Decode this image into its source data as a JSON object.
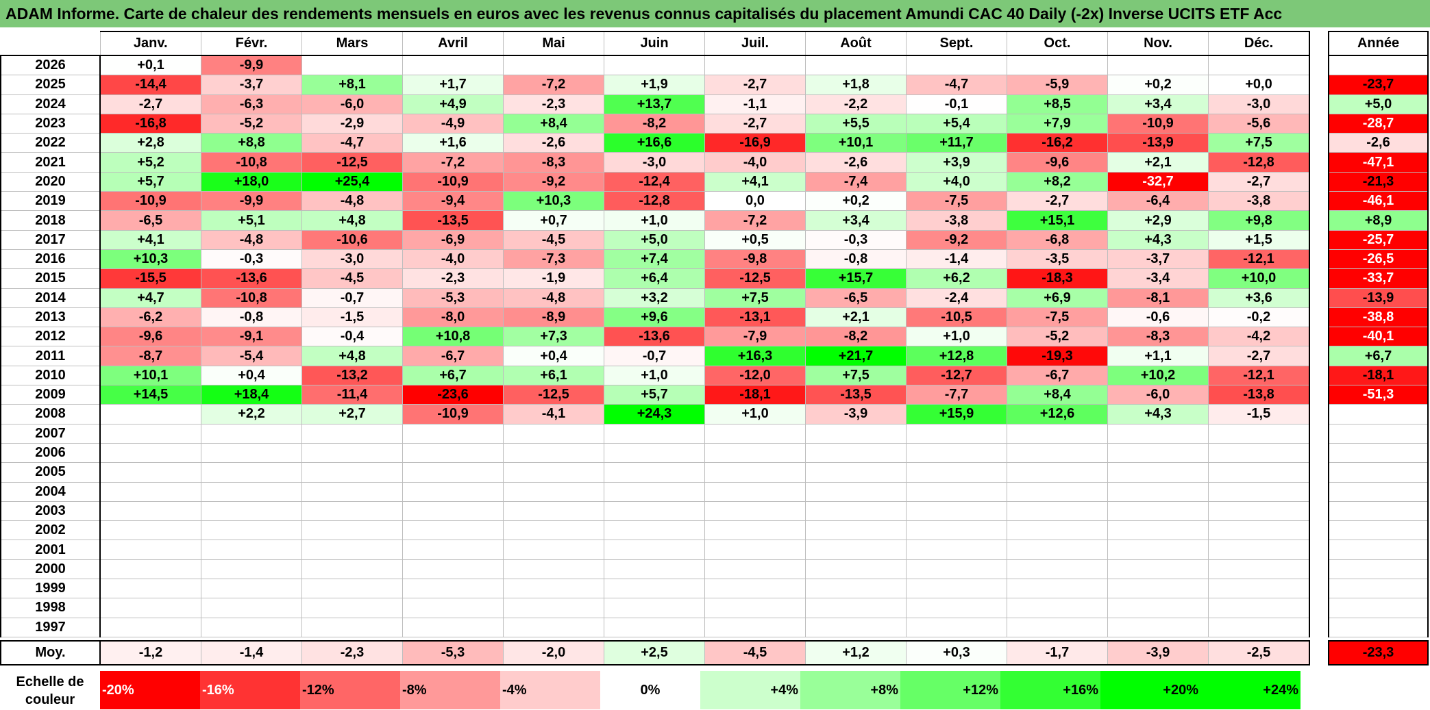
{
  "title": "ADAM Informe. Carte de chaleur des rendements mensuels en euros avec les revenus connus capitalisés du placement Amundi CAC 40 Daily (-2x) Inverse UCITS ETF Acc",
  "colors": {
    "title_bg": "#7dc878",
    "neg_strong": "#ff0000",
    "pos_strong": "#00ff00",
    "neutral": "#ffffff"
  },
  "chart_data": {
    "type": "heatmap",
    "title": "ADAM Informe. Carte de chaleur des rendements mensuels en euros avec les revenus connus capitalisés du placement Amundi CAC 40 Daily (-2x) Inverse UCITS ETF Acc",
    "columns": [
      "Janv.",
      "Févr.",
      "Mars",
      "Avril",
      "Mai",
      "Juin",
      "Juil.",
      "Août",
      "Sept.",
      "Oct.",
      "Nov.",
      "Déc."
    ],
    "year_column_header": "Année",
    "rows": [
      {
        "year": "2026",
        "months": [
          "+0,1",
          "-9,9",
          "",
          "",
          "",
          "",
          "",
          "",
          "",
          "",
          "",
          ""
        ],
        "annual": ""
      },
      {
        "year": "2025",
        "months": [
          "-14,4",
          "-3,7",
          "+8,1",
          "+1,7",
          "-7,2",
          "+1,9",
          "-2,7",
          "+1,8",
          "-4,7",
          "-5,9",
          "+0,2",
          "+0,0"
        ],
        "annual": "-23,7"
      },
      {
        "year": "2024",
        "months": [
          "-2,7",
          "-6,3",
          "-6,0",
          "+4,9",
          "-2,3",
          "+13,7",
          "-1,1",
          "-2,2",
          "-0,1",
          "+8,5",
          "+3,4",
          "-3,0"
        ],
        "annual": "+5,0"
      },
      {
        "year": "2023",
        "months": [
          "-16,8",
          "-5,2",
          "-2,9",
          "-4,9",
          "+8,4",
          "-8,2",
          "-2,7",
          "+5,5",
          "+5,4",
          "+7,9",
          "-10,9",
          "-5,6"
        ],
        "annual": "-28,7"
      },
      {
        "year": "2022",
        "months": [
          "+2,8",
          "+8,8",
          "-4,7",
          "+1,6",
          "-2,6",
          "+16,6",
          "-16,9",
          "+10,1",
          "+11,7",
          "-16,2",
          "-13,9",
          "+7,5"
        ],
        "annual": "-2,6"
      },
      {
        "year": "2021",
        "months": [
          "+5,2",
          "-10,8",
          "-12,5",
          "-7,2",
          "-8,3",
          "-3,0",
          "-4,0",
          "-2,6",
          "+3,9",
          "-9,6",
          "+2,1",
          "-12,8"
        ],
        "annual": "-47,1"
      },
      {
        "year": "2020",
        "months": [
          "+5,7",
          "+18,0",
          "+25,4",
          "-10,9",
          "-9,2",
          "-12,4",
          "+4,1",
          "-7,4",
          "+4,0",
          "+8,2",
          "-32,7",
          "-2,7"
        ],
        "annual": "-21,3"
      },
      {
        "year": "2019",
        "months": [
          "-10,9",
          "-9,9",
          "-4,8",
          "-9,4",
          "+10,3",
          "-12,8",
          "0,0",
          "+0,2",
          "-7,5",
          "-2,7",
          "-6,4",
          "-3,8"
        ],
        "annual": "-46,1"
      },
      {
        "year": "2018",
        "months": [
          "-6,5",
          "+5,1",
          "+4,8",
          "-13,5",
          "+0,7",
          "+1,0",
          "-7,2",
          "+3,4",
          "-3,8",
          "+15,1",
          "+2,9",
          "+9,8"
        ],
        "annual": "+8,9"
      },
      {
        "year": "2017",
        "months": [
          "+4,1",
          "-4,8",
          "-10,6",
          "-6,9",
          "-4,5",
          "+5,0",
          "+0,5",
          "-0,3",
          "-9,2",
          "-6,8",
          "+4,3",
          "+1,5"
        ],
        "annual": "-25,7"
      },
      {
        "year": "2016",
        "months": [
          "+10,3",
          "-0,3",
          "-3,0",
          "-4,0",
          "-7,3",
          "+7,4",
          "-9,8",
          "-0,8",
          "-1,4",
          "-3,5",
          "-3,7",
          "-12,1"
        ],
        "annual": "-26,5"
      },
      {
        "year": "2015",
        "months": [
          "-15,5",
          "-13,6",
          "-4,5",
          "-2,3",
          "-1,9",
          "+6,4",
          "-12,5",
          "+15,7",
          "+6,2",
          "-18,3",
          "-3,4",
          "+10,0"
        ],
        "annual": "-33,7"
      },
      {
        "year": "2014",
        "months": [
          "+4,7",
          "-10,8",
          "-0,7",
          "-5,3",
          "-4,8",
          "+3,2",
          "+7,5",
          "-6,5",
          "-2,4",
          "+6,9",
          "-8,1",
          "+3,6"
        ],
        "annual": "-13,9"
      },
      {
        "year": "2013",
        "months": [
          "-6,2",
          "-0,8",
          "-1,5",
          "-8,0",
          "-8,9",
          "+9,6",
          "-13,1",
          "+2,1",
          "-10,5",
          "-7,5",
          "-0,6",
          "-0,2"
        ],
        "annual": "-38,8"
      },
      {
        "year": "2012",
        "months": [
          "-9,6",
          "-9,1",
          "-0,4",
          "+10,8",
          "+7,3",
          "-13,6",
          "-7,9",
          "-8,2",
          "+1,0",
          "-5,2",
          "-8,3",
          "-4,2"
        ],
        "annual": "-40,1"
      },
      {
        "year": "2011",
        "months": [
          "-8,7",
          "-5,4",
          "+4,8",
          "-6,7",
          "+0,4",
          "-0,7",
          "+16,3",
          "+21,7",
          "+12,8",
          "-19,3",
          "+1,1",
          "-2,7"
        ],
        "annual": "+6,7"
      },
      {
        "year": "2010",
        "months": [
          "+10,1",
          "+0,4",
          "-13,2",
          "+6,7",
          "+6,1",
          "+1,0",
          "-12,0",
          "+7,5",
          "-12,7",
          "-6,7",
          "+10,2",
          "-12,1"
        ],
        "annual": "-18,1"
      },
      {
        "year": "2009",
        "months": [
          "+14,5",
          "+18,4",
          "-11,4",
          "-23,6",
          "-12,5",
          "+5,7",
          "-18,1",
          "-13,5",
          "-7,7",
          "+8,4",
          "-6,0",
          "-13,8"
        ],
        "annual": "-51,3"
      },
      {
        "year": "2008",
        "months": [
          "",
          "+2,2",
          "+2,7",
          "-10,9",
          "-4,1",
          "+24,3",
          "+1,0",
          "-3,9",
          "+15,9",
          "+12,6",
          "+4,3",
          "-1,5"
        ],
        "annual": ""
      },
      {
        "year": "2007",
        "months": [
          "",
          "",
          "",
          "",
          "",
          "",
          "",
          "",
          "",
          "",
          "",
          ""
        ],
        "annual": ""
      },
      {
        "year": "2006",
        "months": [
          "",
          "",
          "",
          "",
          "",
          "",
          "",
          "",
          "",
          "",
          "",
          ""
        ],
        "annual": ""
      },
      {
        "year": "2005",
        "months": [
          "",
          "",
          "",
          "",
          "",
          "",
          "",
          "",
          "",
          "",
          "",
          ""
        ],
        "annual": ""
      },
      {
        "year": "2004",
        "months": [
          "",
          "",
          "",
          "",
          "",
          "",
          "",
          "",
          "",
          "",
          "",
          ""
        ],
        "annual": ""
      },
      {
        "year": "2003",
        "months": [
          "",
          "",
          "",
          "",
          "",
          "",
          "",
          "",
          "",
          "",
          "",
          ""
        ],
        "annual": ""
      },
      {
        "year": "2002",
        "months": [
          "",
          "",
          "",
          "",
          "",
          "",
          "",
          "",
          "",
          "",
          "",
          ""
        ],
        "annual": ""
      },
      {
        "year": "2001",
        "months": [
          "",
          "",
          "",
          "",
          "",
          "",
          "",
          "",
          "",
          "",
          "",
          ""
        ],
        "annual": ""
      },
      {
        "year": "2000",
        "months": [
          "",
          "",
          "",
          "",
          "",
          "",
          "",
          "",
          "",
          "",
          "",
          ""
        ],
        "annual": ""
      },
      {
        "year": "1999",
        "months": [
          "",
          "",
          "",
          "",
          "",
          "",
          "",
          "",
          "",
          "",
          "",
          ""
        ],
        "annual": ""
      },
      {
        "year": "1998",
        "months": [
          "",
          "",
          "",
          "",
          "",
          "",
          "",
          "",
          "",
          "",
          "",
          ""
        ],
        "annual": ""
      },
      {
        "year": "1997",
        "months": [
          "",
          "",
          "",
          "",
          "",
          "",
          "",
          "",
          "",
          "",
          "",
          ""
        ],
        "annual": ""
      }
    ],
    "average": {
      "label": "Moy.",
      "months": [
        "-1,2",
        "-1,4",
        "-2,3",
        "-5,3",
        "-2,0",
        "+2,5",
        "-4,5",
        "+1,2",
        "+0,3",
        "-1,7",
        "-3,9",
        "-2,5"
      ],
      "annual": "-23,3"
    },
    "color_scale": {
      "label": "Echelle de couleur",
      "stops": [
        {
          "label": "-20%",
          "value": -20,
          "color": "#ff0000"
        },
        {
          "label": "-16%",
          "value": -16,
          "color": "#ff3333"
        },
        {
          "label": "-12%",
          "value": -12,
          "color": "#ff6666"
        },
        {
          "label": "-8%",
          "value": -8,
          "color": "#ff9999"
        },
        {
          "label": "-4%",
          "value": -4,
          "color": "#ffcccc"
        },
        {
          "label": "0%",
          "value": 0,
          "color": "#ffffff"
        },
        {
          "label": "+4%",
          "value": 4,
          "color": "#ccffcc"
        },
        {
          "label": "+8%",
          "value": 8,
          "color": "#99ff99"
        },
        {
          "label": "+12%",
          "value": 12,
          "color": "#66ff66"
        },
        {
          "label": "+16%",
          "value": 16,
          "color": "#33ff33"
        },
        {
          "label": "+20%",
          "value": 20,
          "color": "#00ff00"
        },
        {
          "label": "+24%",
          "value": 24,
          "color": "#00ff00"
        }
      ]
    }
  }
}
